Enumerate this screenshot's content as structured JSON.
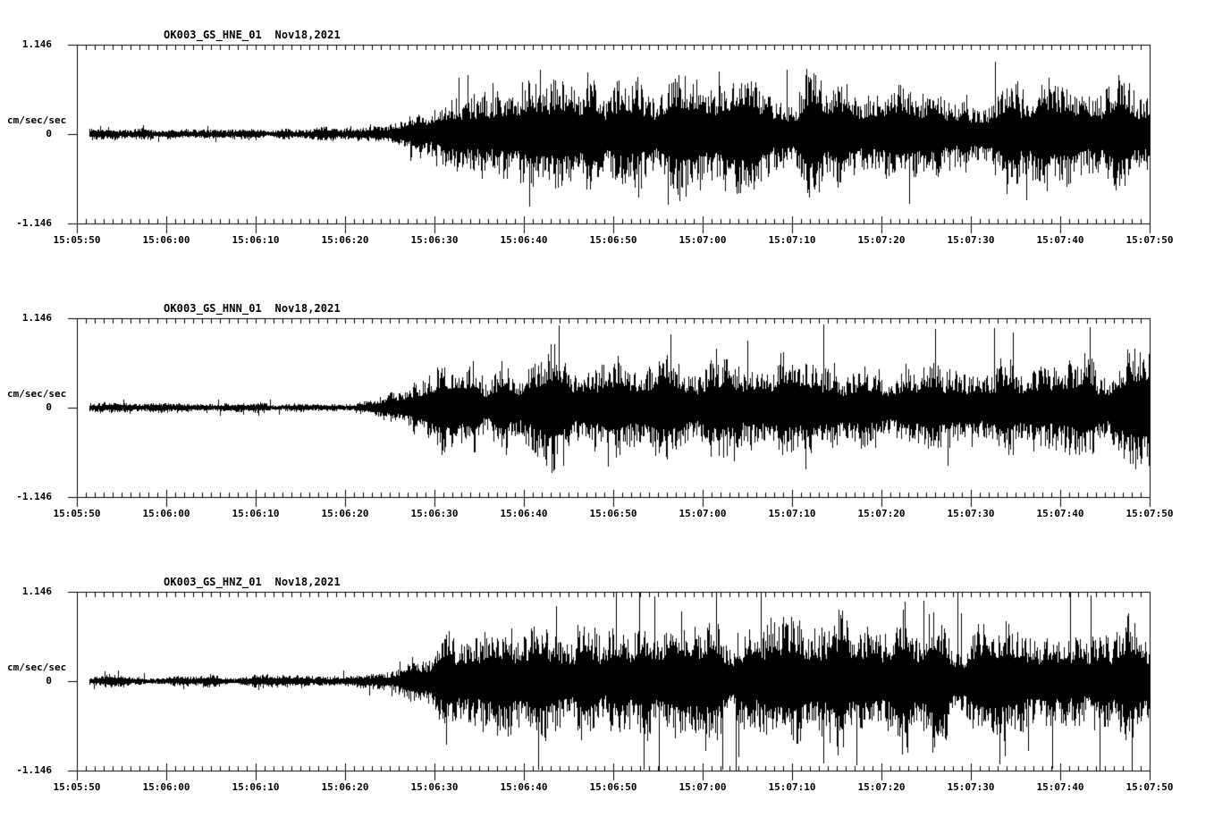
{
  "colors": {
    "background": "#ffffff",
    "foreground": "#000000"
  },
  "y_axis": {
    "max_label": "1.146",
    "zero_label": "0",
    "min_label": "-1.146",
    "units_label": "cm/sec/sec"
  },
  "x_axis": {
    "tick_labels": [
      "15:05:50",
      "15:06:00",
      "15:06:10",
      "15:06:20",
      "15:06:30",
      "15:06:40",
      "15:06:50",
      "15:07:00",
      "15:07:10",
      "15:07:20",
      "15:07:30",
      "15:07:40",
      "15:07:50"
    ],
    "minor_tick_interval_seconds": 1,
    "major_tick_interval_seconds": 10
  },
  "panels": [
    {
      "title": "OK003_GS_HNE_01  Nov18,2021",
      "channel": "HNE",
      "date": "Nov18,2021"
    },
    {
      "title": "OK003_GS_HNN_01  Nov18,2021",
      "channel": "HNN",
      "date": "Nov18,2021"
    },
    {
      "title": "OK003_GS_HNZ_01  Nov18,2021",
      "channel": "HNZ",
      "date": "Nov18,2021"
    }
  ],
  "chart_data": {
    "type": "line",
    "subtype": "seismogram-3-component",
    "station_titles": [
      "OK003_GS_HNE_01  Nov18,2021",
      "OK003_GS_HNN_01  Nov18,2021",
      "OK003_GS_HNZ_01  Nov18,2021"
    ],
    "x_start": "15:05:50",
    "x_end": "15:07:50",
    "x_span_seconds": 120,
    "x_tick_labels": [
      "15:05:50",
      "15:06:00",
      "15:06:10",
      "15:06:20",
      "15:06:30",
      "15:06:40",
      "15:06:50",
      "15:07:00",
      "15:07:10",
      "15:07:20",
      "15:07:30",
      "15:07:40",
      "15:07:50"
    ],
    "ylabel": "cm/sec/sec",
    "ylim": [
      -1.146,
      1.146
    ],
    "grid": false,
    "legend": false,
    "note": "Black noise-like acceleration traces centered on 0; quiet until ~15:06:25, then strong sustained shaking to end of window. envelope_amplitude_cm_s2 is the dense-band envelope (|amplitude|) sampled every 5 s; individual peaks reach ~1.5-1.8x envelope (HNZ peaks clip near +/-1.146).",
    "series": [
      {
        "name": "OK003_GS_HNE_01",
        "signal_onset": "15:06:25",
        "envelope_t_seconds": [
          0,
          5,
          10,
          15,
          20,
          25,
          30,
          35,
          40,
          45,
          50,
          55,
          60,
          65,
          70,
          75,
          80,
          85,
          90,
          95,
          100,
          105,
          110,
          115,
          120
        ],
        "envelope_amplitude_cm_s2": [
          0.06,
          0.06,
          0.06,
          0.06,
          0.06,
          0.06,
          0.06,
          0.1,
          0.32,
          0.44,
          0.52,
          0.55,
          0.5,
          0.48,
          0.53,
          0.48,
          0.53,
          0.57,
          0.5,
          0.48,
          0.53,
          0.5,
          0.53,
          0.55,
          0.55
        ]
      },
      {
        "name": "OK003_GS_HNN_01",
        "signal_onset": "15:06:25",
        "envelope_t_seconds": [
          0,
          5,
          10,
          15,
          20,
          25,
          30,
          35,
          40,
          45,
          50,
          55,
          60,
          65,
          70,
          75,
          80,
          85,
          90,
          95,
          100,
          105,
          110,
          115,
          120
        ],
        "envelope_amplitude_cm_s2": [
          0.05,
          0.05,
          0.05,
          0.05,
          0.05,
          0.05,
          0.05,
          0.12,
          0.37,
          0.48,
          0.53,
          0.5,
          0.48,
          0.5,
          0.48,
          0.46,
          0.48,
          0.5,
          0.48,
          0.46,
          0.48,
          0.46,
          0.44,
          0.48,
          0.5
        ]
      },
      {
        "name": "OK003_GS_HNZ_01",
        "signal_onset": "15:06:27",
        "envelope_t_seconds": [
          0,
          5,
          10,
          15,
          20,
          25,
          30,
          35,
          40,
          45,
          50,
          55,
          60,
          65,
          70,
          75,
          80,
          85,
          90,
          95,
          100,
          105,
          110,
          115,
          120
        ],
        "envelope_amplitude_cm_s2": [
          0.06,
          0.06,
          0.06,
          0.06,
          0.06,
          0.06,
          0.06,
          0.09,
          0.4,
          0.57,
          0.63,
          0.6,
          0.63,
          0.6,
          0.63,
          0.6,
          0.63,
          0.6,
          0.57,
          0.6,
          0.57,
          0.6,
          0.57,
          0.57,
          0.55
        ]
      }
    ]
  }
}
